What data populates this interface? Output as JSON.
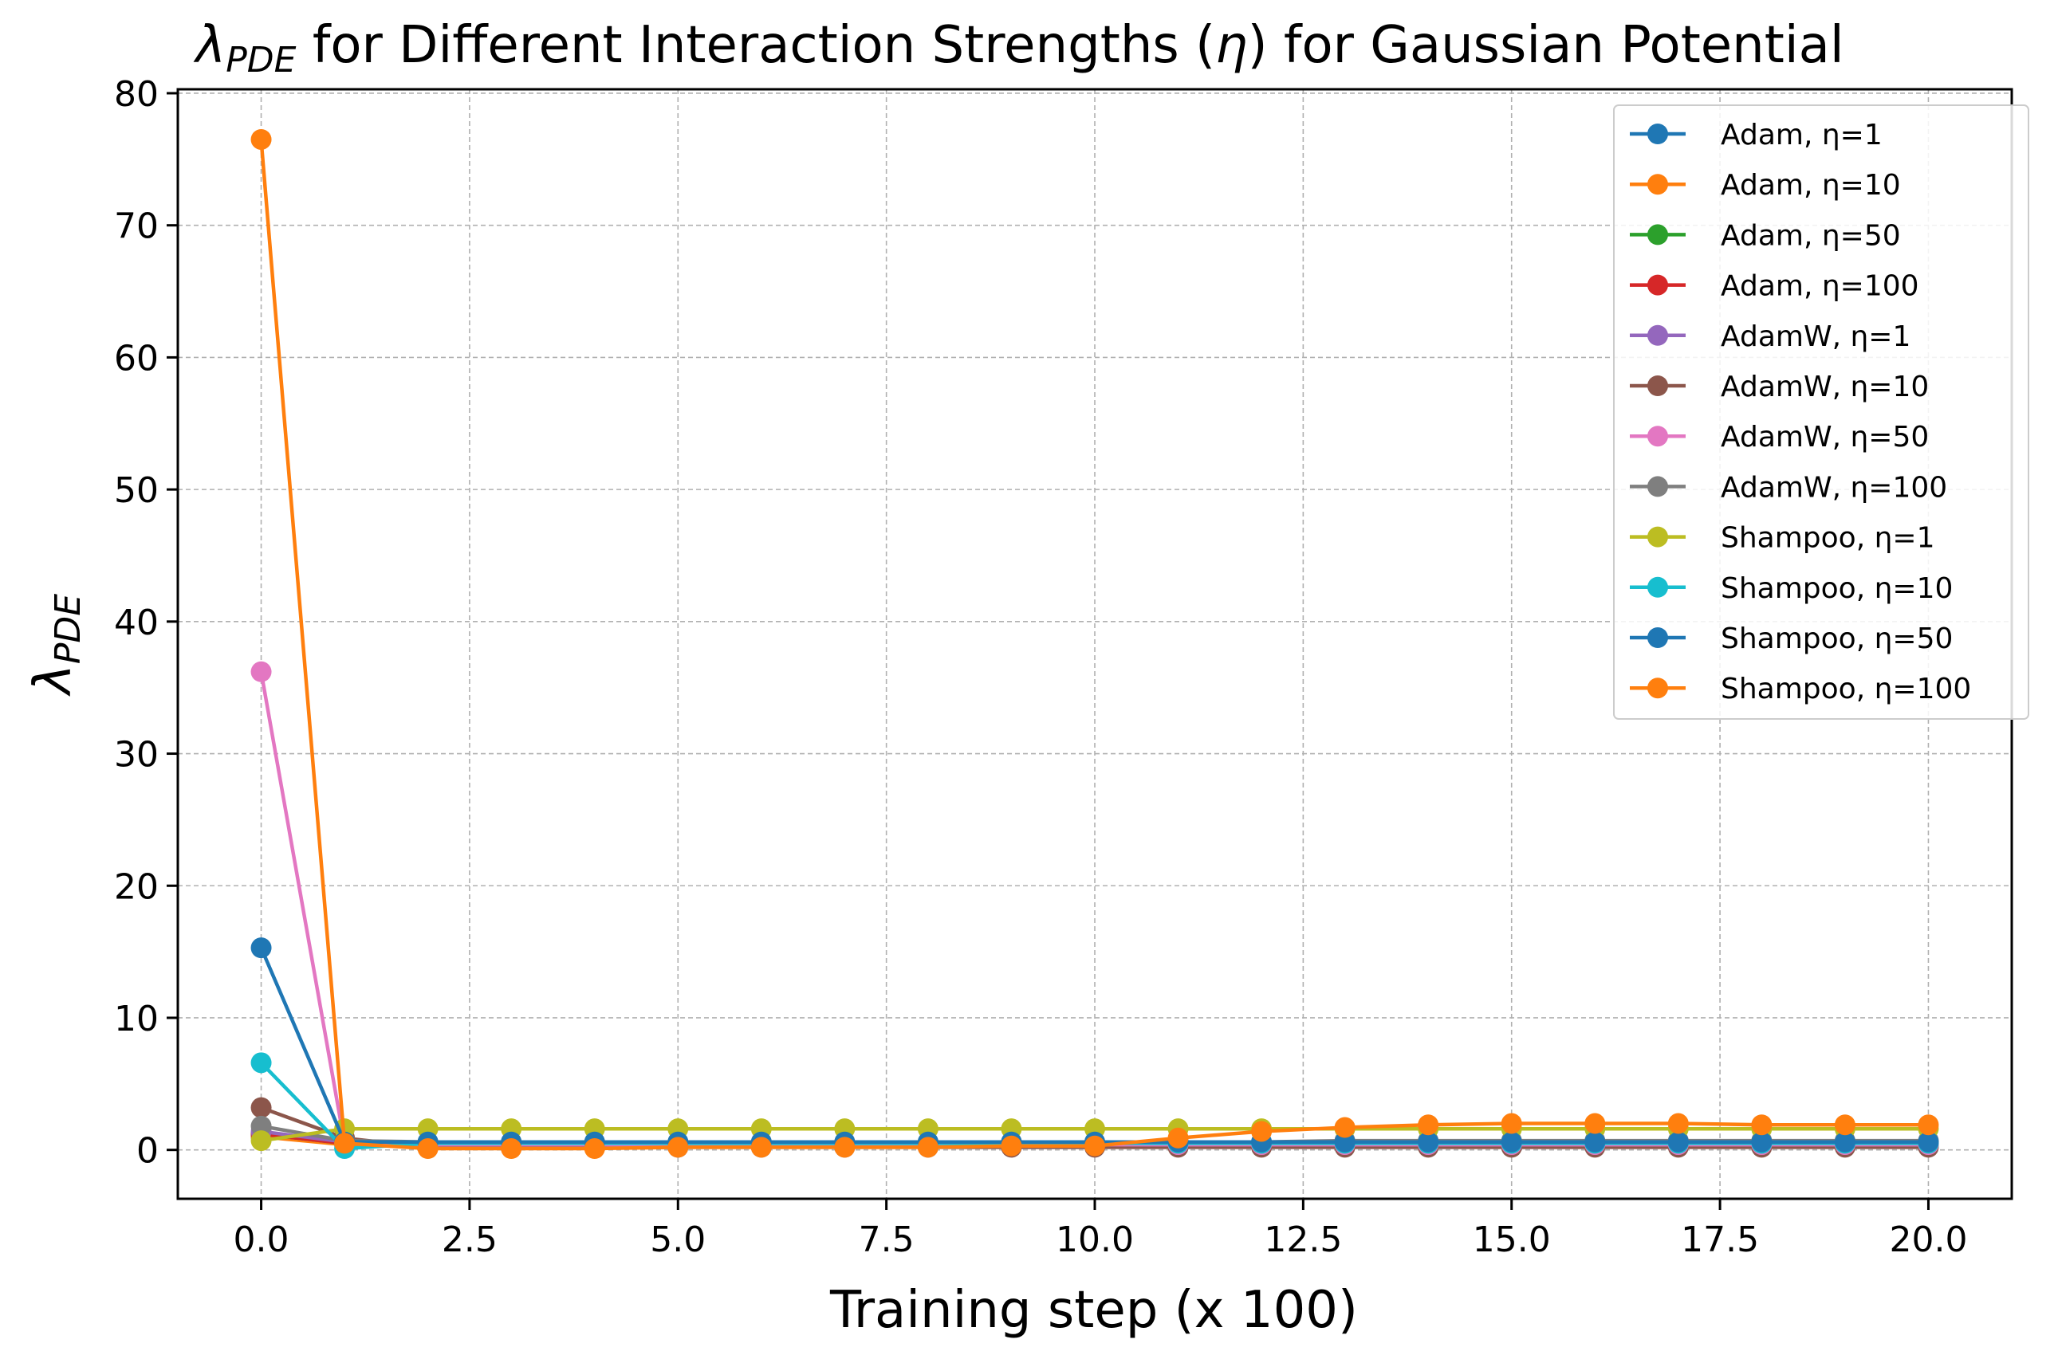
{
  "chart_data": {
    "type": "line",
    "title": {
      "symbol": "λ",
      "subscript": "PDE",
      "text": " for Different Interaction Strengths (",
      "greek": "η",
      "text_end": ") for Gaussian Potential"
    },
    "xlabel": "Training step (x 100)",
    "ylabel": {
      "symbol": "λ",
      "subscript": "PDE"
    },
    "xlim": [
      -1.0,
      21.0
    ],
    "ylim": [
      -3.7,
      80.3
    ],
    "xticks": [
      0.0,
      2.5,
      5.0,
      7.5,
      10.0,
      12.5,
      15.0,
      17.5,
      20.0
    ],
    "xtick_labels": [
      "0.0",
      "2.5",
      "5.0",
      "7.5",
      "10.0",
      "12.5",
      "15.0",
      "17.5",
      "20.0"
    ],
    "yticks": [
      0,
      10,
      20,
      30,
      40,
      50,
      60,
      70,
      80
    ],
    "ytick_labels": [
      "0",
      "10",
      "20",
      "30",
      "40",
      "50",
      "60",
      "70",
      "80"
    ],
    "grid": true,
    "legend_position": "top-right",
    "x": [
      0,
      1,
      2,
      3,
      4,
      5,
      6,
      7,
      8,
      9,
      10,
      11,
      12,
      13,
      14,
      15,
      16,
      17,
      18,
      19,
      20
    ],
    "series": [
      {
        "name": "Adam, η=1",
        "color": "#1f77b4",
        "values": [
          1.0,
          0.5,
          0.5,
          0.5,
          0.5,
          0.5,
          0.5,
          0.5,
          0.5,
          0.5,
          0.5,
          0.5,
          0.5,
          0.5,
          0.5,
          0.5,
          0.5,
          0.5,
          0.5,
          0.5,
          0.5
        ]
      },
      {
        "name": "Adam, η=10",
        "color": "#ff7f0e",
        "values": [
          1.0,
          0.4,
          0.4,
          0.4,
          0.4,
          0.4,
          0.4,
          0.4,
          0.4,
          0.4,
          0.4,
          0.4,
          0.4,
          0.4,
          0.4,
          0.4,
          0.4,
          0.4,
          0.4,
          0.4,
          0.4
        ]
      },
      {
        "name": "Adam, η=50",
        "color": "#2ca02c",
        "values": [
          1.2,
          0.5,
          0.5,
          0.5,
          0.5,
          0.5,
          0.5,
          0.5,
          0.5,
          0.5,
          0.5,
          0.5,
          0.5,
          0.5,
          0.5,
          0.5,
          0.5,
          0.5,
          0.5,
          0.5,
          0.5
        ]
      },
      {
        "name": "Adam, η=100",
        "color": "#d62728",
        "values": [
          1.2,
          0.5,
          0.5,
          0.5,
          0.5,
          0.5,
          0.5,
          0.5,
          0.5,
          0.5,
          0.5,
          0.5,
          0.5,
          0.5,
          0.5,
          0.5,
          0.5,
          0.5,
          0.5,
          0.5,
          0.5
        ]
      },
      {
        "name": "AdamW, η=1",
        "color": "#9467bd",
        "values": [
          1.4,
          0.6,
          0.5,
          0.5,
          0.5,
          0.5,
          0.5,
          0.5,
          0.5,
          0.5,
          0.5,
          0.5,
          0.5,
          0.5,
          0.5,
          0.5,
          0.5,
          0.5,
          0.5,
          0.5,
          0.5
        ]
      },
      {
        "name": "AdamW, η=10",
        "color": "#8c564b",
        "values": [
          3.2,
          0.9,
          0.2,
          0.2,
          0.2,
          0.2,
          0.2,
          0.2,
          0.2,
          0.2,
          0.2,
          0.2,
          0.2,
          0.2,
          0.2,
          0.2,
          0.2,
          0.2,
          0.2,
          0.2,
          0.2
        ]
      },
      {
        "name": "AdamW, η=50",
        "color": "#e377c2",
        "values": [
          36.2,
          0.5,
          0.4,
          0.4,
          0.4,
          0.4,
          0.4,
          0.4,
          0.4,
          0.4,
          0.4,
          0.4,
          0.4,
          0.4,
          0.4,
          0.4,
          0.4,
          0.4,
          0.4,
          0.4,
          0.4
        ]
      },
      {
        "name": "AdamW, η=100",
        "color": "#7f7f7f",
        "values": [
          1.8,
          0.7,
          0.6,
          0.6,
          0.6,
          0.6,
          0.6,
          0.6,
          0.6,
          0.6,
          0.6,
          0.6,
          0.6,
          0.7,
          0.7,
          0.7,
          0.7,
          0.7,
          0.7,
          0.7,
          0.7
        ]
      },
      {
        "name": "Shampoo, η=1",
        "color": "#bcbd22",
        "values": [
          0.7,
          1.6,
          1.6,
          1.6,
          1.6,
          1.6,
          1.6,
          1.6,
          1.6,
          1.6,
          1.6,
          1.6,
          1.6,
          1.6,
          1.6,
          1.6,
          1.6,
          1.6,
          1.6,
          1.6,
          1.6
        ]
      },
      {
        "name": "Shampoo, η=10",
        "color": "#17becf",
        "values": [
          6.6,
          0.1,
          0.5,
          0.5,
          0.5,
          0.5,
          0.5,
          0.5,
          0.5,
          0.5,
          0.5,
          0.5,
          0.5,
          0.5,
          0.5,
          0.5,
          0.5,
          0.5,
          0.5,
          0.5,
          0.5
        ]
      },
      {
        "name": "Shampoo, η=50",
        "color": "#1f77b4",
        "values": [
          15.3,
          0.6,
          0.6,
          0.6,
          0.6,
          0.6,
          0.6,
          0.6,
          0.6,
          0.6,
          0.6,
          0.6,
          0.6,
          0.6,
          0.6,
          0.6,
          0.6,
          0.6,
          0.6,
          0.6,
          0.6
        ]
      },
      {
        "name": "Shampoo, η=100",
        "color": "#ff7f0e",
        "values": [
          76.5,
          0.5,
          0.1,
          0.1,
          0.1,
          0.2,
          0.2,
          0.2,
          0.2,
          0.3,
          0.3,
          0.9,
          1.4,
          1.7,
          1.9,
          2.0,
          2.0,
          2.0,
          1.9,
          1.9,
          1.9
        ]
      }
    ]
  }
}
